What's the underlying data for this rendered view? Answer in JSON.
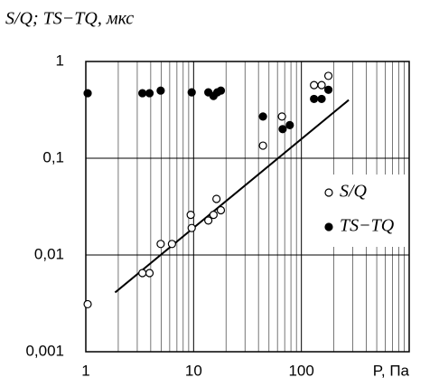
{
  "chart_data": {
    "type": "scatter",
    "title": "S/Q; TS−TQ, мкс",
    "x_label": "P, Па",
    "xscale": "log",
    "yscale": "log",
    "grid": "minor",
    "legend": "center right",
    "xlim": [
      1,
      1000
    ],
    "ylim": [
      0.001,
      1
    ],
    "xticks": [
      1,
      10,
      100
    ],
    "yticks": [
      {
        "value": 0.001,
        "label": "0,001"
      },
      {
        "value": 0.01,
        "label": "0,01"
      },
      {
        "value": 0.1,
        "label": "0,1"
      },
      1
    ],
    "series": [
      {
        "name": "S/Q",
        "marker": "open",
        "color": "#000000",
        "x": [
          1.04,
          3.35,
          3.9,
          4.95,
          6.3,
          9.4,
          9.6,
          13.7,
          15.3,
          16.3,
          17.9,
          44,
          66,
          131,
          154,
          178
        ],
        "values": [
          0.0031,
          0.0065,
          0.0065,
          0.013,
          0.013,
          0.026,
          0.019,
          0.0227,
          0.026,
          0.038,
          0.029,
          0.135,
          0.27,
          0.57,
          0.57,
          0.71
        ]
      },
      {
        "name": "TS−TQ",
        "marker": "filled",
        "color": "#000000",
        "x": [
          1.04,
          3.35,
          3.9,
          4.95,
          9.6,
          13.7,
          15.3,
          16.6,
          17.9,
          44,
          67,
          78,
          131,
          154,
          178
        ],
        "values": [
          0.47,
          0.47,
          0.47,
          0.5,
          0.48,
          0.48,
          0.44,
          0.48,
          0.5,
          0.27,
          0.2,
          0.22,
          0.41,
          0.41,
          0.51
        ]
      }
    ],
    "trend": {
      "x": [
        1.87,
        275
      ],
      "values": [
        0.0041,
        0.4
      ]
    }
  }
}
